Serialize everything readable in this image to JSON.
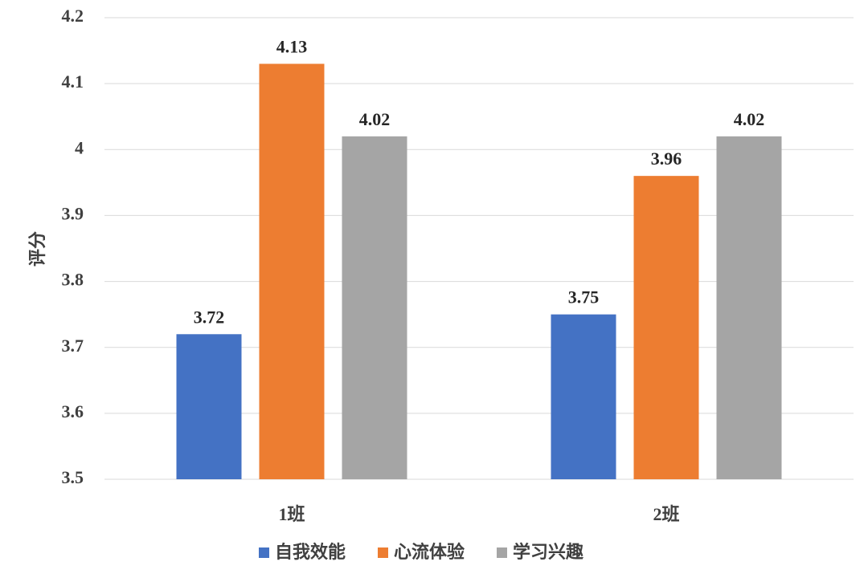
{
  "chart_data": {
    "type": "bar",
    "categories": [
      "1班",
      "2班"
    ],
    "series": [
      {
        "name": "自我效能",
        "values": [
          3.72,
          3.75
        ],
        "color": "#4472c4"
      },
      {
        "name": "心流体验",
        "values": [
          4.13,
          3.96
        ],
        "color": "#ed7d31"
      },
      {
        "name": "学习兴趣",
        "values": [
          4.02,
          4.02
        ],
        "color": "#a5a5a5"
      }
    ],
    "title": "",
    "xlabel": "",
    "ylabel": "评分",
    "ylim": [
      3.5,
      4.2
    ],
    "yticks": [
      "3.5",
      "3.6",
      "3.7",
      "3.8",
      "3.9",
      "4",
      "4.1",
      "4.2"
    ],
    "grid": true,
    "legend": "bottom"
  }
}
